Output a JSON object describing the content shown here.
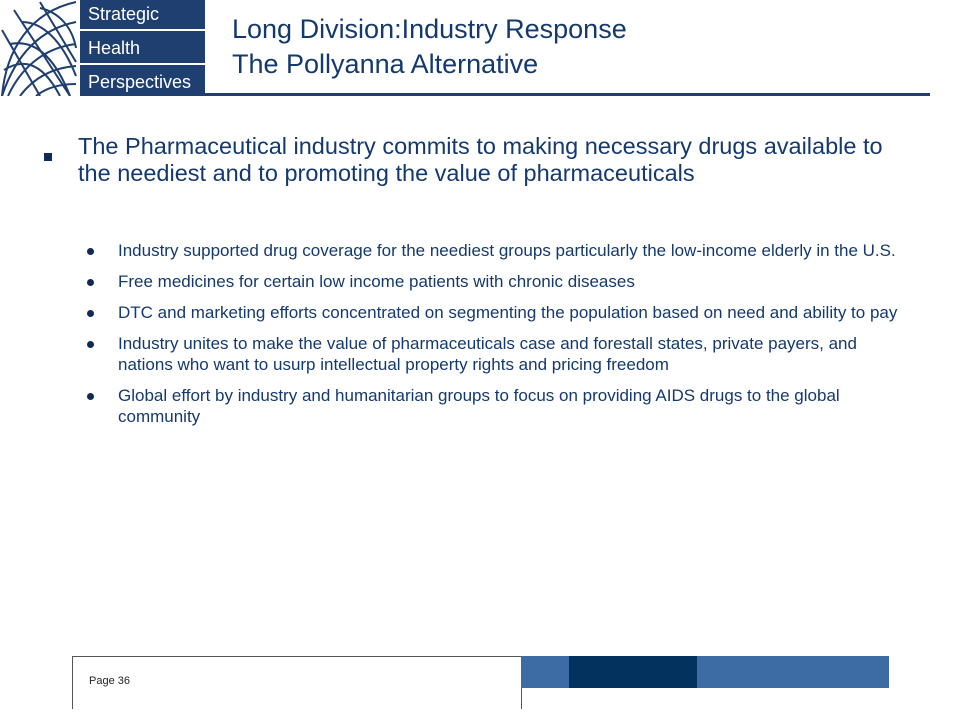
{
  "logo": {
    "line1": "Strategic",
    "line2": "Health",
    "line3": "Perspectives",
    "icon": "globe-grid-icon"
  },
  "title": {
    "line1": "Long Division:Industry Response",
    "line2": "The Pollyanna Alternative"
  },
  "main_point": "The Pharmaceutical industry commits to making necessary drugs available to the neediest and to promoting the value of pharmaceuticals",
  "sub_points": [
    "Industry supported drug coverage for the neediest groups particularly the low-income elderly in the U.S.",
    "Free medicines for certain low income patients with chronic diseases",
    "DTC and marketing efforts concentrated on segmenting the population based on need and ability to pay",
    "Industry unites to make the value of pharmaceuticals case and forestall states, private payers, and nations who want to usurp intellectual property rights and pricing freedom",
    "Global effort by industry and humanitarian groups to focus on providing AIDS drugs to the global community"
  ],
  "footer": {
    "page_label": "Page 36"
  },
  "colors": {
    "brand_navy": "#1e3f6f",
    "text_blue": "#14396e",
    "footer_blue": "#3d6ba4",
    "footer_dark": "#04325f"
  }
}
